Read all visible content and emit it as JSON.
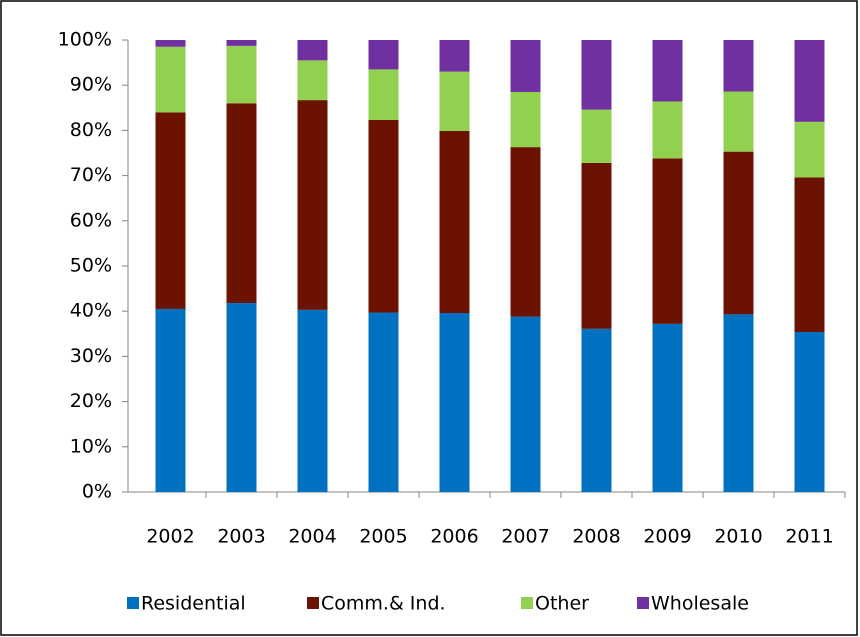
{
  "chart_data": {
    "type": "stacked_bar",
    "categories": [
      "2002",
      "2003",
      "2004",
      "2005",
      "2006",
      "2007",
      "2008",
      "2009",
      "2010",
      "2011"
    ],
    "series": [
      {
        "name": "Residential",
        "color": "#0070c0",
        "values": [
          40.5,
          41.8,
          40.3,
          39.7,
          39.6,
          38.8,
          36.1,
          37.2,
          39.3,
          35.4
        ]
      },
      {
        "name": "Comm.& Ind.",
        "color": "#6b1200",
        "values": [
          43.5,
          44.2,
          46.4,
          42.6,
          40.3,
          37.5,
          36.7,
          36.6,
          36.0,
          34.2
        ]
      },
      {
        "name": "Other",
        "color": "#92d050",
        "values": [
          14.5,
          12.7,
          8.8,
          11.2,
          13.1,
          12.2,
          11.8,
          12.6,
          13.3,
          12.3
        ]
      },
      {
        "name": "Wholesale",
        "color": "#7030a0",
        "values": [
          1.5,
          1.3,
          4.5,
          6.5,
          7.0,
          11.5,
          15.4,
          13.6,
          11.4,
          18.1
        ]
      }
    ],
    "ylim": [
      0,
      100
    ],
    "yticks": [
      {
        "value": 0,
        "label": "0%"
      },
      {
        "value": 10,
        "label": "10%"
      },
      {
        "value": 20,
        "label": "20%"
      },
      {
        "value": 30,
        "label": "30%"
      },
      {
        "value": 40,
        "label": "40%"
      },
      {
        "value": 50,
        "label": "50%"
      },
      {
        "value": 60,
        "label": "60%"
      },
      {
        "value": 70,
        "label": "70%"
      },
      {
        "value": 80,
        "label": "80%"
      },
      {
        "value": 90,
        "label": "90%"
      },
      {
        "value": 100,
        "label": "100%"
      }
    ],
    "legend": "bottom"
  }
}
